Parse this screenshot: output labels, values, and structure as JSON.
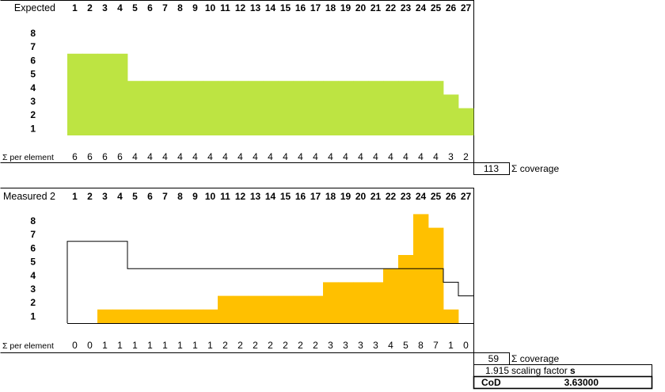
{
  "colors": {
    "expected_fill": "#bde442",
    "measured_fill": "#ffc000",
    "outline": "#000000"
  },
  "chart_data": [
    {
      "type": "bar",
      "title": "Expected",
      "categories": [
        "1",
        "2",
        "3",
        "4",
        "5",
        "6",
        "7",
        "8",
        "9",
        "10",
        "11",
        "12",
        "13",
        "14",
        "15",
        "16",
        "17",
        "18",
        "19",
        "20",
        "21",
        "22",
        "23",
        "24",
        "25",
        "26",
        "27"
      ],
      "y_ticks": [
        "8",
        "7",
        "6",
        "5",
        "4",
        "3",
        "2",
        "1"
      ],
      "ylim": [
        0,
        8
      ],
      "values": [
        6,
        6,
        6,
        6,
        4,
        4,
        4,
        4,
        4,
        4,
        4,
        4,
        4,
        4,
        4,
        4,
        4,
        4,
        4,
        4,
        4,
        4,
        4,
        4,
        4,
        3,
        2
      ],
      "row_label": "Σ per element",
      "totals": [
        {
          "value": "113",
          "label": "Σ coverage"
        }
      ]
    },
    {
      "type": "bar",
      "title": "Measured 2",
      "categories": [
        "1",
        "2",
        "3",
        "4",
        "5",
        "6",
        "7",
        "8",
        "9",
        "10",
        "11",
        "12",
        "13",
        "14",
        "15",
        "16",
        "17",
        "18",
        "19",
        "20",
        "21",
        "22",
        "23",
        "24",
        "25",
        "26",
        "27"
      ],
      "y_ticks": [
        "8",
        "7",
        "6",
        "5",
        "4",
        "3",
        "2",
        "1"
      ],
      "ylim": [
        0,
        8
      ],
      "values": [
        0,
        0,
        1,
        1,
        1,
        1,
        1,
        1,
        1,
        1,
        2,
        2,
        2,
        2,
        2,
        2,
        2,
        3,
        3,
        3,
        3,
        4,
        5,
        8,
        7,
        1,
        0
      ],
      "overlay_values": [
        6,
        6,
        6,
        6,
        4,
        4,
        4,
        4,
        4,
        4,
        4,
        4,
        4,
        4,
        4,
        4,
        4,
        4,
        4,
        4,
        4,
        4,
        4,
        4,
        4,
        3,
        2
      ],
      "row_label": "Σ per element",
      "totals": [
        {
          "value": "59",
          "label": "Σ coverage"
        },
        {
          "value": "1.915",
          "label": "scaling factor",
          "label_bold": "s"
        }
      ],
      "cod": {
        "label": "CoD",
        "value": "3.63000"
      }
    }
  ]
}
